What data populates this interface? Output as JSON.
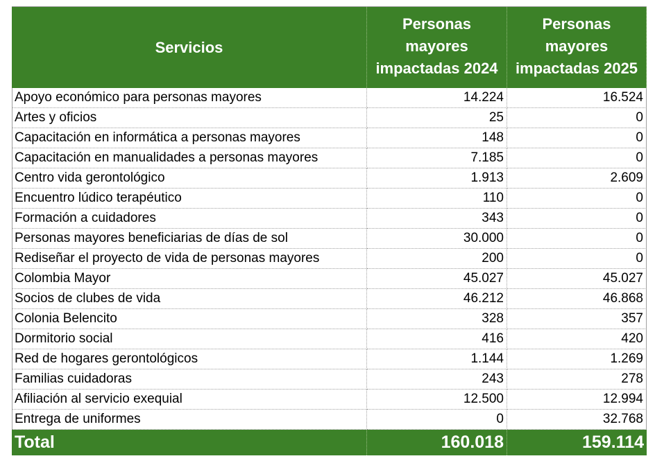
{
  "table": {
    "header": {
      "servicios": "Servicios",
      "col_2024": [
        "Personas",
        "mayores",
        "impactadas 2024"
      ],
      "col_2025": [
        "Personas",
        "mayores",
        "impactadas 2025"
      ]
    },
    "rows": [
      {
        "servicio": "Apoyo económico para personas mayores",
        "y2024": "14.224",
        "y2025": "16.524"
      },
      {
        "servicio": "Artes y oficios",
        "y2024": "25",
        "y2025": "0"
      },
      {
        "servicio": "Capacitación en informática a personas mayores",
        "y2024": "148",
        "y2025": "0"
      },
      {
        "servicio": "Capacitación en manualidades a personas mayores",
        "y2024": "7.185",
        "y2025": "0"
      },
      {
        "servicio": "Centro vida gerontológico",
        "y2024": "1.913",
        "y2025": "2.609"
      },
      {
        "servicio": "Encuentro lúdico terapéutico",
        "y2024": "110",
        "y2025": "0"
      },
      {
        "servicio": "Formación a cuidadores",
        "y2024": "343",
        "y2025": "0"
      },
      {
        "servicio": "Personas mayores beneficiarias de días de sol",
        "y2024": "30.000",
        "y2025": "0"
      },
      {
        "servicio": "Rediseñar el proyecto de vida de personas mayores",
        "y2024": "200",
        "y2025": "0"
      },
      {
        "servicio": "Colombia Mayor",
        "y2024": "45.027",
        "y2025": "45.027"
      },
      {
        "servicio": "Socios de clubes de vida",
        "y2024": "46.212",
        "y2025": "46.868"
      },
      {
        "servicio": "Colonia Belencito",
        "y2024": "328",
        "y2025": "357"
      },
      {
        "servicio": "Dormitorio social",
        "y2024": "416",
        "y2025": "420"
      },
      {
        "servicio": "Red de hogares gerontológicos",
        "y2024": "1.144",
        "y2025": "1.269"
      },
      {
        "servicio": "Familias cuidadoras",
        "y2024": "243",
        "y2025": "278"
      },
      {
        "servicio": "Afiliación al servicio exequial",
        "y2024": "12.500",
        "y2025": "12.994"
      },
      {
        "servicio": "Entrega de uniformes",
        "y2024": "0",
        "y2025": "32.768"
      }
    ],
    "total": {
      "label": "Total",
      "y2024": "160.018",
      "y2025": "159.114"
    }
  },
  "colors": {
    "header_bg": "#3c8128",
    "header_text": "#ffffff",
    "grid": "#a0a0a0"
  }
}
